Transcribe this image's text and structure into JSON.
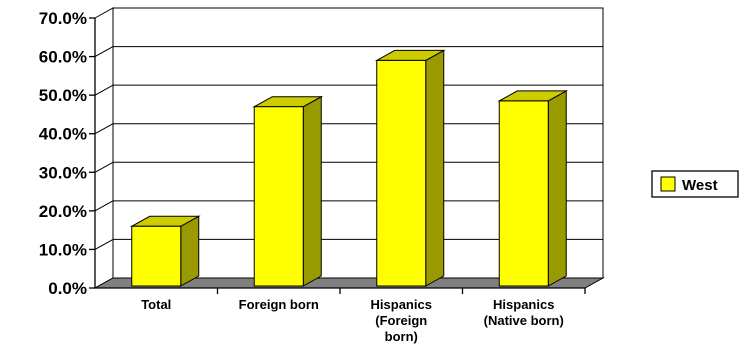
{
  "chart_data": {
    "type": "bar",
    "style": "3d-column",
    "categories": [
      [
        "Total"
      ],
      [
        "Foreign born"
      ],
      [
        "Hispanics",
        "(Foreign",
        "born)"
      ],
      [
        "Hispanics",
        "(Native born)"
      ]
    ],
    "series": [
      {
        "name": "West",
        "values": [
          16.0,
          47.0,
          59.0,
          48.5
        ],
        "color": "#ffff00"
      }
    ],
    "ylim": [
      0,
      70
    ],
    "yticks": [
      0,
      10,
      20,
      30,
      40,
      50,
      60,
      70
    ],
    "ytick_labels": [
      "0.0%",
      "10.0%",
      "20.0%",
      "30.0%",
      "40.0%",
      "50.0%",
      "60.0%",
      "70.0%"
    ],
    "grid": true,
    "legend": {
      "position": "right",
      "entries": [
        "West"
      ]
    },
    "colors": {
      "bar_front": "#ffff00",
      "bar_top": "#cccc00",
      "bar_side": "#999900",
      "floor": "#808080",
      "grid": "#000000"
    },
    "title": "",
    "xlabel": "",
    "ylabel": ""
  }
}
